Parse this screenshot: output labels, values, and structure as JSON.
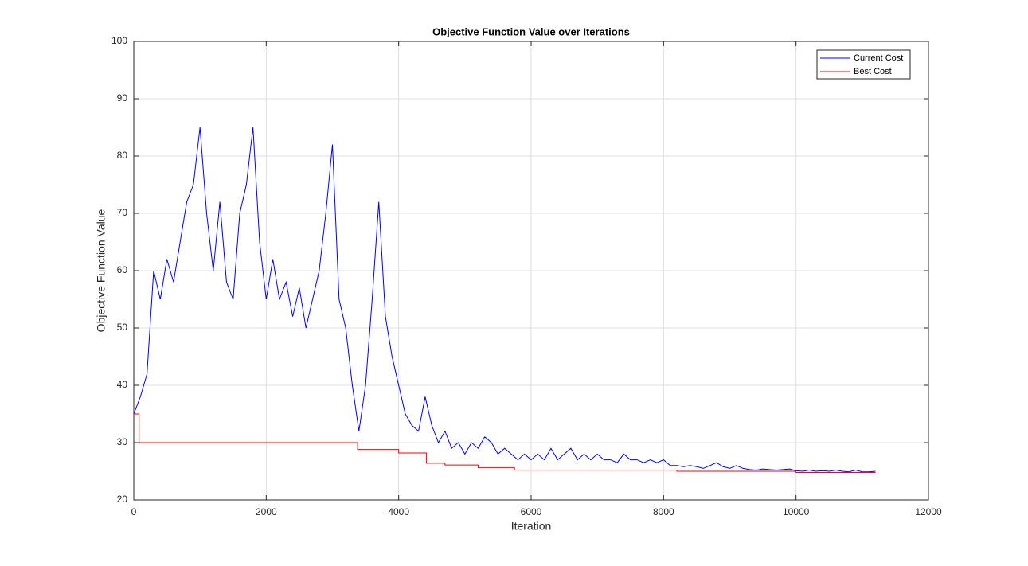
{
  "chart_data": {
    "type": "line",
    "title": "Objective Function Value over Iterations",
    "xlabel": "Iteration",
    "ylabel": "Objective Function Value",
    "xlim": [
      0,
      12000
    ],
    "xticks": [
      0,
      2000,
      4000,
      6000,
      8000,
      10000,
      12000
    ],
    "ylim": [
      20,
      100
    ],
    "yticks": [
      20,
      30,
      40,
      50,
      60,
      70,
      80,
      90,
      100
    ],
    "grid": true,
    "legend": "northeast",
    "series": [
      {
        "name": "Current Cost",
        "color": "#0000ff",
        "x": [
          0,
          100,
          200,
          300,
          400,
          500,
          600,
          700,
          800,
          900,
          1000,
          1100,
          1200,
          1300,
          1400,
          1500,
          1600,
          1700,
          1800,
          1900,
          2000,
          2100,
          2200,
          2300,
          2400,
          2500,
          2600,
          2700,
          2800,
          2900,
          3000,
          3100,
          3200,
          3300,
          3400,
          3500,
          3600,
          3700,
          3800,
          3900,
          4000,
          4100,
          4200,
          4300,
          4400,
          4500,
          4600,
          4700,
          4800,
          4900,
          5000,
          5100,
          5200,
          5300,
          5400,
          5500,
          5600,
          5700,
          5800,
          5900,
          6000,
          6100,
          6200,
          6300,
          6400,
          6500,
          6600,
          6700,
          6800,
          6900,
          7000,
          7100,
          7200,
          7300,
          7400,
          7500,
          7600,
          7700,
          7800,
          7900,
          8000,
          8100,
          8200,
          8300,
          8400,
          8500,
          8600,
          8700,
          8800,
          8900,
          9000,
          9100,
          9200,
          9300,
          9400,
          9500,
          9600,
          9700,
          9800,
          9900,
          10000,
          10100,
          10200,
          10300,
          10400,
          10500,
          10600,
          10700,
          10800,
          10900,
          11000,
          11100,
          11200
        ],
        "values": [
          35,
          38,
          42,
          60,
          55,
          62,
          58,
          65,
          72,
          75,
          85,
          70,
          60,
          72,
          58,
          55,
          70,
          75,
          85,
          65,
          55,
          62,
          55,
          58,
          52,
          57,
          50,
          55,
          60,
          70,
          82,
          55,
          50,
          40,
          32,
          40,
          55,
          72,
          52,
          45,
          40,
          35,
          33,
          32,
          38,
          33,
          30,
          32,
          29,
          30,
          28,
          30,
          29,
          31,
          30,
          28,
          29,
          28,
          27,
          28,
          27,
          28,
          27,
          29,
          27,
          28,
          29,
          27,
          28,
          27,
          28,
          27,
          27,
          26.5,
          28,
          27,
          27,
          26.5,
          27,
          26.5,
          27,
          26,
          26,
          25.8,
          26,
          25.8,
          25.5,
          26,
          26.5,
          25.8,
          25.5,
          26,
          25.5,
          25.3,
          25.2,
          25.4,
          25.3,
          25.2,
          25.3,
          25.4,
          25.1,
          25,
          25.2,
          25,
          25.1,
          25,
          25.2,
          25,
          24.9,
          25.2,
          24.9,
          24.9,
          25
        ]
      },
      {
        "name": "Best Cost",
        "color": "#ff0000",
        "x": [
          0,
          80,
          80,
          3380,
          3380,
          4000,
          4000,
          4420,
          4420,
          4700,
          4700,
          5200,
          5200,
          5750,
          5750,
          8200,
          8200,
          10000,
          10000,
          11200
        ],
        "values": [
          35,
          35,
          30,
          30,
          28.8,
          28.8,
          28.2,
          28.2,
          26.4,
          26.4,
          26.1,
          26.1,
          25.6,
          25.6,
          25.2,
          25.2,
          25.0,
          25.0,
          24.8,
          24.8
        ]
      }
    ]
  }
}
